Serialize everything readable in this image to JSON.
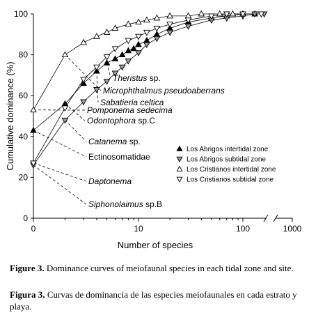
{
  "chart_data": {
    "type": "line",
    "xlabel": "Number of species",
    "ylabel": "Cumulative dominance (%)",
    "x_scale": "log",
    "xlim": [
      0,
      1000
    ],
    "ylim": [
      0,
      100
    ],
    "x_ticks": [
      "0",
      "10",
      "100",
      "1000"
    ],
    "y_ticks": [
      "0",
      "20",
      "40",
      "60",
      "80",
      "100"
    ],
    "grid": false,
    "legend_position": "bottom-right",
    "series": [
      {
        "name": "Los Abrigos intertidal zone",
        "marker": "triangle-filled",
        "x": [
          1,
          2,
          3,
          4,
          5,
          6,
          7,
          8,
          9,
          10,
          12,
          15,
          20,
          30,
          50,
          70,
          100,
          130
        ],
        "y": [
          43,
          56,
          66,
          72,
          76,
          78,
          80,
          82,
          83,
          85,
          87,
          90,
          93,
          96,
          98,
          99,
          100,
          100
        ]
      },
      {
        "name": "Los Abrigos subtidal zone",
        "marker": "triangle-down-gray",
        "x": [
          1,
          2,
          3,
          4,
          5,
          6,
          7,
          8,
          10,
          12,
          15,
          20,
          30,
          50,
          70,
          100,
          130,
          160
        ],
        "y": [
          26,
          48,
          57,
          63,
          67,
          71,
          74,
          77,
          81,
          85,
          88,
          91,
          94,
          97,
          98,
          99,
          100,
          100
        ]
      },
      {
        "name": "Los Cristianos intertidal zone",
        "marker": "triangle-open",
        "x": [
          1,
          2,
          3,
          4,
          5,
          6,
          8,
          10,
          12,
          15,
          20,
          30,
          40,
          60,
          80,
          100
        ],
        "y": [
          53,
          80,
          86,
          89,
          91,
          93,
          95,
          96,
          97,
          98,
          99,
          99,
          100,
          100,
          100,
          100
        ]
      },
      {
        "name": "Los Cristianos subtidal zone",
        "marker": "triangle-down-open",
        "x": [
          1,
          2,
          3,
          4,
          5,
          6,
          8,
          10,
          12,
          15,
          20,
          30,
          50,
          70,
          100,
          150
        ],
        "y": [
          27,
          54,
          68,
          74,
          79,
          83,
          87,
          89,
          91,
          93,
          95,
          97,
          99,
          100,
          100,
          100
        ]
      }
    ],
    "annotations": [
      {
        "text": "Theristus",
        "suffix": " sp.",
        "italic": true,
        "x": 5,
        "y": 76
      },
      {
        "text": "Microphthalmus pseudoaberrans",
        "suffix": "",
        "italic": true,
        "x": 2,
        "y": 80
      },
      {
        "text": "Sabatieria celtica",
        "suffix": "",
        "italic": true,
        "x": 4,
        "y": 72
      },
      {
        "text": "Pomponema sedecima",
        "suffix": "",
        "italic": true,
        "x": 1,
        "y": 53
      },
      {
        "text": "Odontophora",
        "suffix": " sp.C",
        "italic": true,
        "x": 2,
        "y": 56
      },
      {
        "text": "Catanema",
        "suffix": " sp.",
        "italic": true,
        "x": 2,
        "y": 48
      },
      {
        "text": "Ectinosomatidae",
        "suffix": "",
        "italic": false,
        "x": 1,
        "y": 43
      },
      {
        "text": "Daptonema",
        "suffix": "",
        "italic": true,
        "x": 1,
        "y": 27
      },
      {
        "text": "Siphonolaimus",
        "suffix": " sp.B",
        "italic": true,
        "x": 1,
        "y": 26
      }
    ]
  },
  "caption": {
    "en_label": "Figure 3.",
    "en_text": " Dominance curves of meiofaunal species in each tidal zone and site.",
    "es_label": "Figura 3.",
    "es_text": " Curvas de dominancia de las especies meiofaunales en cada estrato y playa."
  }
}
